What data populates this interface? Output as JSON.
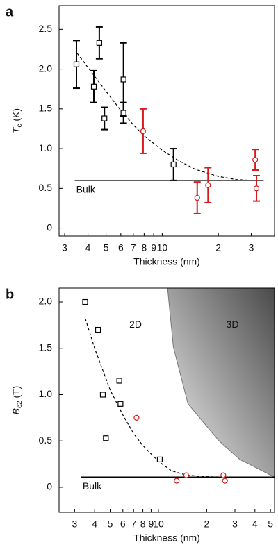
{
  "chart_data": [
    {
      "type": "scatter",
      "panel_label": "a",
      "x_label": "Thickness (nm)",
      "y_label_parts": [
        "T",
        "c",
        " (K)"
      ],
      "log_x": true,
      "xlim": [
        2.8,
        40
      ],
      "ylim": [
        -0.1,
        2.8
      ],
      "xticks": [
        3,
        4,
        5,
        6,
        7,
        8,
        9,
        10,
        {
          "value": 20,
          "label": "2"
        },
        {
          "value": 30,
          "label": "3"
        }
      ],
      "yticks": [
        0,
        0.5,
        {
          "value": 1,
          "label": "1.0"
        },
        1.5,
        {
          "value": 2,
          "label": "2.0"
        },
        2.5
      ],
      "series": [
        {
          "kind": "line",
          "color": "#000000",
          "dash": true,
          "x": [
            3.5,
            4,
            5,
            6,
            7,
            8,
            10,
            12,
            15,
            20,
            25,
            30
          ],
          "values": [
            2.2,
            2.02,
            1.72,
            1.48,
            1.3,
            1.16,
            0.98,
            0.86,
            0.74,
            0.65,
            0.61,
            0.6
          ]
        },
        {
          "kind": "line",
          "name": "Bulk",
          "color": "#000000",
          "dash": false,
          "x": [
            3.4,
            35
          ],
          "values": [
            0.6,
            0.6
          ]
        },
        {
          "kind": "points",
          "marker": "square",
          "color": "#000000",
          "x": [
            3.47,
            4.3,
            4.6,
            4.9,
            6.2,
            6.2,
            11.5
          ],
          "values": [
            2.06,
            1.78,
            2.33,
            1.38,
            1.87,
            1.45,
            0.8
          ],
          "errors": [
            0.3,
            0.2,
            0.2,
            0.14,
            0.46,
            0.13,
            0.2
          ]
        },
        {
          "kind": "points",
          "marker": "circle",
          "color": "#d7191c",
          "x": [
            7.9,
            15.4,
            17.6,
            31.5,
            32
          ],
          "values": [
            1.22,
            0.38,
            0.54,
            0.86,
            0.5
          ],
          "errors": [
            0.28,
            0.2,
            0.22,
            0.13,
            0.16
          ]
        }
      ]
    },
    {
      "type": "scatter",
      "panel_label": "b",
      "x_label": "Thickness (nm)",
      "y_label_parts": [
        "B",
        "c2",
        " (T)"
      ],
      "log_x": true,
      "xlim": [
        2.4,
        53
      ],
      "ylim": [
        -0.27,
        2.15
      ],
      "xticks": [
        3,
        4,
        5,
        6,
        7,
        8,
        9,
        10,
        {
          "value": 20,
          "label": "2"
        },
        {
          "value": 30,
          "label": "3"
        },
        {
          "value": 40,
          "label": "4"
        },
        {
          "value": 50,
          "label": "5"
        }
      ],
      "yticks": [
        0,
        0.5,
        {
          "value": 1,
          "label": "1.0"
        },
        1.5,
        {
          "value": 2,
          "label": "2.0"
        }
      ],
      "annotations": [
        {
          "text": "2D",
          "x": 7.2,
          "y": 1.75
        },
        {
          "text": "3D",
          "x": 29,
          "y": 1.75
        }
      ],
      "series": [
        {
          "kind": "region",
          "x": [
            11.4,
            12.4,
            15.3,
            23.9,
            32.2,
            53
          ],
          "values": [
            2.15,
            1.51,
            0.9,
            0.5,
            0.3,
            0.11
          ]
        },
        {
          "kind": "line",
          "color": "#000000",
          "dash": true,
          "x": [
            3.5,
            4,
            5,
            6,
            7,
            8,
            10,
            12,
            15,
            20,
            25
          ],
          "values": [
            1.82,
            1.5,
            1.05,
            0.78,
            0.58,
            0.45,
            0.28,
            0.18,
            0.13,
            0.115,
            0.11
          ]
        },
        {
          "kind": "line",
          "name": "Bulk",
          "color": "#000000",
          "dash": false,
          "x": [
            3.3,
            53
          ],
          "values": [
            0.11,
            0.11
          ]
        },
        {
          "kind": "points",
          "marker": "square",
          "color": "#000000",
          "x": [
            3.49,
            4.2,
            4.5,
            4.7,
            5.7,
            5.8,
            10.2
          ],
          "values": [
            2.0,
            1.7,
            1.0,
            0.53,
            1.15,
            0.9,
            0.3
          ]
        },
        {
          "kind": "points",
          "marker": "circle",
          "color": "#d7191c",
          "x": [
            7.3,
            13,
            14.9,
            25.4,
            26
          ],
          "values": [
            0.75,
            0.07,
            0.13,
            0.13,
            0.07
          ]
        }
      ]
    }
  ]
}
